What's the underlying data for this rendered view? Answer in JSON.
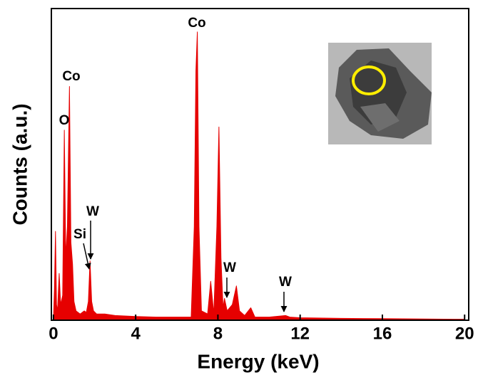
{
  "chart_data": {
    "type": "area",
    "xlabel": "Energy (keV)",
    "ylabel": "Counts (a.u.)",
    "xlim": [
      -0.1,
      20.2
    ],
    "ylim": [
      0,
      100
    ],
    "xticks": [
      0,
      4,
      8,
      12,
      16,
      20
    ],
    "annotations": [
      "Co",
      "O",
      "Co",
      "W",
      "Si",
      "W",
      "W"
    ],
    "series": [
      {
        "color": "#e60000",
        "x": [
          0,
          0.05,
          0.1,
          0.15,
          0.2,
          0.28,
          0.35,
          0.45,
          0.53,
          0.6,
          0.68,
          0.78,
          0.85,
          0.93,
          1.0,
          1.1,
          1.3,
          1.5,
          1.6,
          1.7,
          1.78,
          1.86,
          1.95,
          2.1,
          2.5,
          3,
          4,
          5,
          6,
          6.7,
          6.85,
          6.93,
          7.0,
          7.08,
          7.2,
          7.5,
          7.65,
          7.8,
          7.95,
          8.05,
          8.15,
          8.25,
          8.32,
          8.45,
          8.7,
          8.9,
          9.05,
          9.3,
          9.6,
          9.8,
          10.5,
          11.3,
          11.5,
          12,
          14,
          16,
          18,
          20
        ],
        "values": [
          0,
          10,
          28.5,
          5,
          3,
          15,
          5,
          8,
          61,
          20,
          30,
          75,
          25,
          18,
          6,
          3,
          2,
          3,
          2.5,
          6,
          19,
          6,
          3,
          2,
          2,
          1.5,
          1.2,
          1,
          1,
          1,
          30,
          80,
          92.5,
          30,
          3,
          2,
          12.5,
          2,
          30,
          62,
          20,
          4,
          7,
          3,
          5,
          11,
          3,
          1.5,
          4,
          1,
          1,
          1.5,
          1,
          0.8,
          0.6,
          0.5,
          0.4,
          0.3
        ]
      }
    ]
  }
}
